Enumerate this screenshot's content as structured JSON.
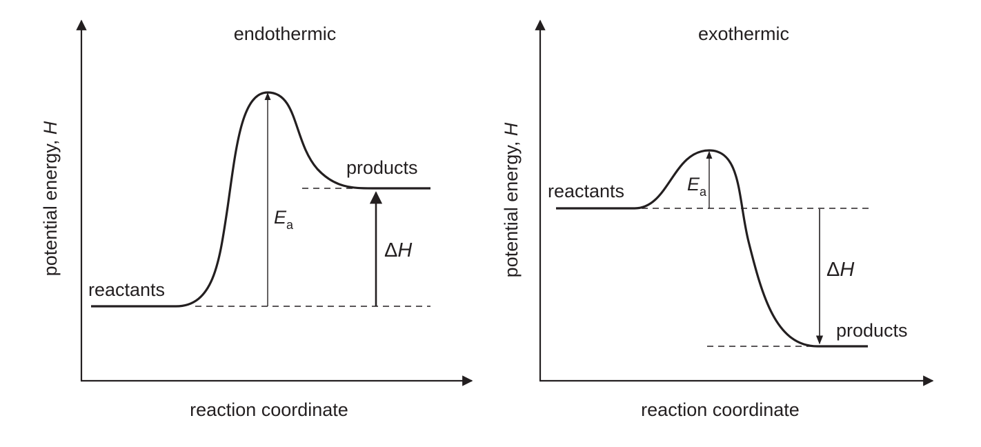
{
  "colors": {
    "ink": "#231f20",
    "background": "#ffffff"
  },
  "endothermic": {
    "title": "endothermic",
    "y_axis_label": "potential energy, ",
    "y_axis_symbol": "H",
    "x_axis_label": "reaction coordinate",
    "reactants_label": "reactants",
    "products_label": "products",
    "ea_symbol": "E",
    "ea_subscript": "a",
    "delta_symbol": "Δ",
    "dh_symbol": "H"
  },
  "exothermic": {
    "title": "exothermic",
    "y_axis_label": "potential energy, ",
    "y_axis_symbol": "H",
    "x_axis_label": "reaction coordinate",
    "reactants_label": "reactants",
    "products_label": "products",
    "ea_symbol": "E",
    "ea_subscript": "a",
    "delta_symbol": "Δ",
    "dh_symbol": "H"
  }
}
